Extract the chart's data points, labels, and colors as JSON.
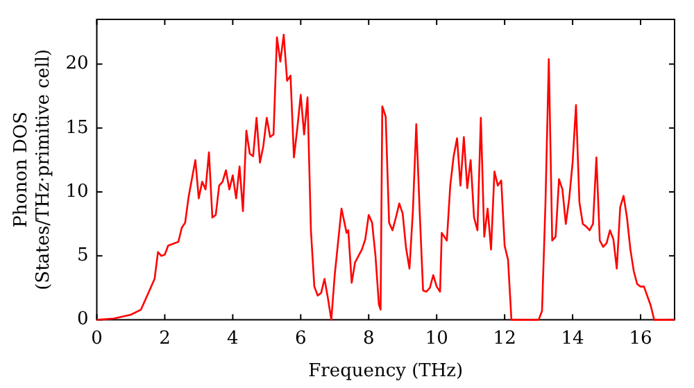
{
  "chart_data": {
    "type": "line",
    "xlabel": "Frequency (THz)",
    "ylabel": "Phonon DOS\n(States/THz·primitive cell)",
    "xlim": [
      0,
      17
    ],
    "ylim": [
      0,
      23.5
    ],
    "xticks": [
      0,
      2,
      4,
      6,
      8,
      10,
      12,
      14,
      16
    ],
    "yticks": [
      0,
      5,
      10,
      15,
      20
    ],
    "grid": false,
    "legend": false,
    "marker": "none",
    "line_style": "solid",
    "series": [
      {
        "color": "#ff0000",
        "x": [
          0,
          0.5,
          1,
          1.3,
          1.5,
          1.7,
          1.8,
          1.9,
          2.0,
          2.1,
          2.4,
          2.5,
          2.6,
          2.7,
          2.9,
          3.0,
          3.1,
          3.2,
          3.3,
          3.4,
          3.5,
          3.6,
          3.7,
          3.8,
          3.9,
          4.0,
          4.1,
          4.2,
          4.3,
          4.4,
          4.5,
          4.6,
          4.7,
          4.8,
          4.9,
          5.0,
          5.1,
          5.2,
          5.3,
          5.4,
          5.5,
          5.6,
          5.7,
          5.8,
          5.9,
          6.0,
          6.1,
          6.2,
          6.3,
          6.4,
          6.5,
          6.6,
          6.7,
          6.8,
          6.9,
          7.0,
          7.2,
          7.35,
          7.4,
          7.5,
          7.6,
          7.8,
          7.9,
          8.0,
          8.1,
          8.2,
          8.3,
          8.35,
          8.4,
          8.5,
          8.6,
          8.7,
          8.8,
          8.9,
          9.0,
          9.1,
          9.2,
          9.3,
          9.4,
          9.5,
          9.6,
          9.7,
          9.8,
          9.9,
          10.0,
          10.1,
          10.15,
          10.3,
          10.4,
          10.5,
          10.6,
          10.7,
          10.8,
          10.9,
          11.0,
          11.1,
          11.2,
          11.3,
          11.4,
          11.5,
          11.6,
          11.7,
          11.8,
          11.9,
          12.0,
          12.1,
          12.2,
          13.0,
          13.1,
          13.2,
          13.3,
          13.4,
          13.5,
          13.6,
          13.7,
          13.8,
          13.9,
          14.0,
          14.1,
          14.2,
          14.3,
          14.4,
          14.5,
          14.6,
          14.7,
          14.8,
          14.9,
          15.0,
          15.1,
          15.2,
          15.3,
          15.4,
          15.5,
          15.6,
          15.7,
          15.8,
          15.9,
          16.0,
          16.1,
          16.3,
          16.4,
          17.0
        ],
        "values": [
          0,
          0.1,
          0.4,
          0.8,
          2,
          3.2,
          5.3,
          5.0,
          5.1,
          5.8,
          6.1,
          7.2,
          7.6,
          9.6,
          12.5,
          9.5,
          10.8,
          10.2,
          13.1,
          8.0,
          8.2,
          10.5,
          10.8,
          11.7,
          10.2,
          11.3,
          9.5,
          12,
          8.5,
          14.8,
          13.0,
          12.8,
          15.8,
          12.3,
          13.6,
          15.8,
          14.3,
          14.5,
          22.1,
          20.2,
          22.3,
          18.7,
          19.1,
          12.7,
          15,
          17.6,
          14.5,
          17.4,
          7,
          2.6,
          1.9,
          2.1,
          3.2,
          1.7,
          0,
          3.5,
          8.7,
          6.8,
          7.0,
          2.9,
          4.5,
          5.5,
          6.3,
          8.2,
          7.6,
          5,
          1.2,
          0.8,
          16.7,
          15.9,
          7.6,
          7,
          8.0,
          9.1,
          8.3,
          5.6,
          4,
          8.5,
          15.3,
          8.5,
          2.3,
          2.2,
          2.5,
          3.5,
          2.6,
          2.2,
          6.8,
          6.2,
          10.5,
          12.8,
          14.2,
          10.5,
          14.3,
          10.3,
          12.5,
          8.0,
          7.0,
          15.8,
          6.5,
          8.7,
          5.5,
          11.6,
          10.5,
          10.9,
          5.8,
          4.7,
          0,
          0,
          0.7,
          9,
          20.4,
          6.2,
          6.5,
          11,
          10.2,
          7.5,
          9.5,
          12.3,
          16.8,
          9.2,
          7.5,
          7.3,
          7,
          7.5,
          12.7,
          6.2,
          5.7,
          6,
          7,
          6.3,
          4,
          8.8,
          9.7,
          8,
          5.5,
          3.8,
          2.8,
          2.6,
          2.6,
          1.1,
          0,
          0
        ]
      }
    ]
  }
}
